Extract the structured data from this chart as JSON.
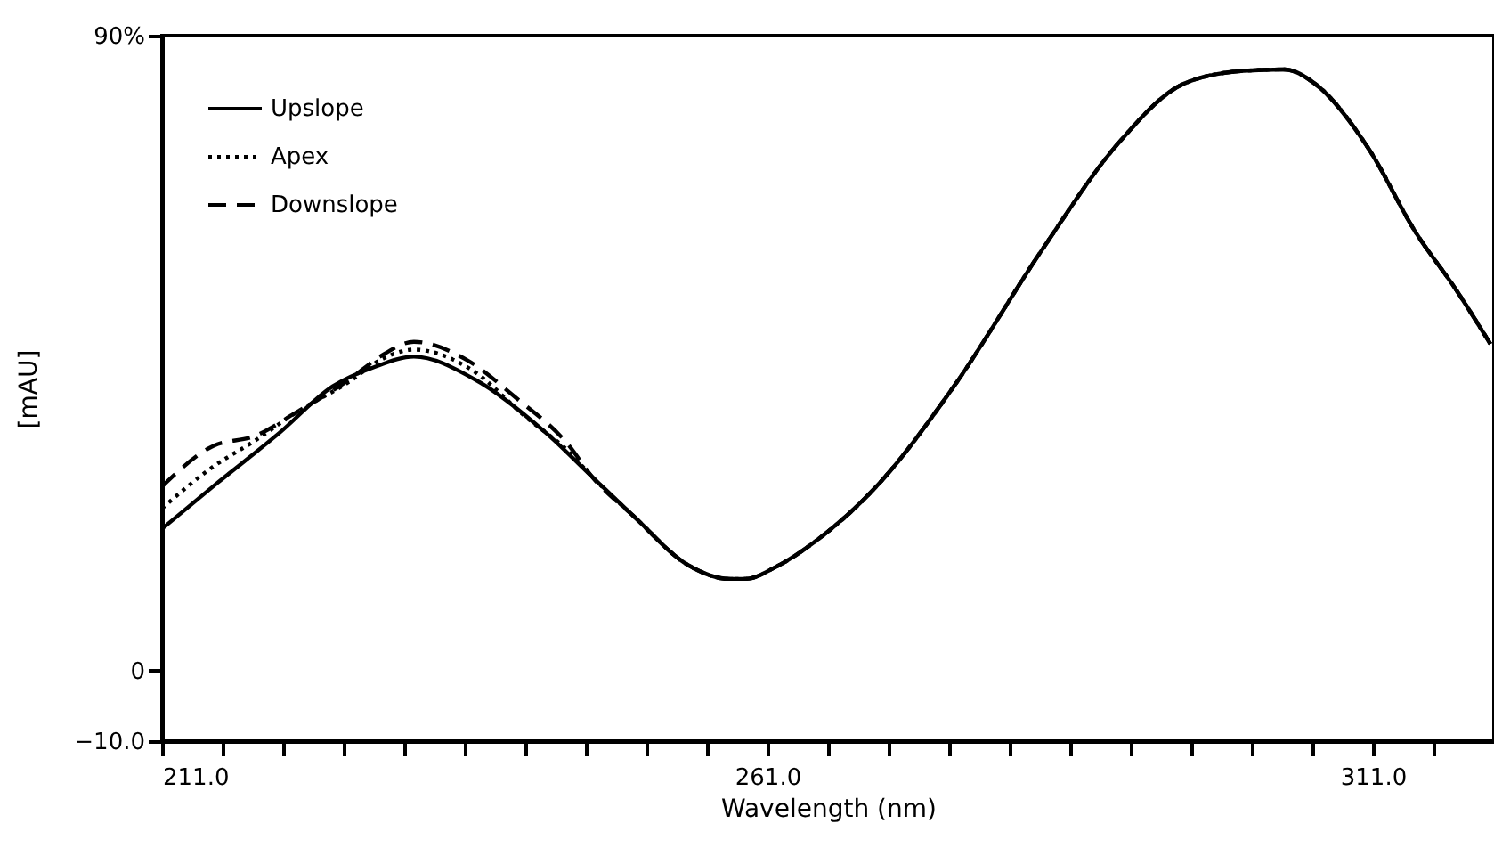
{
  "chart_data": {
    "type": "line",
    "xlabel": "Wavelength   (nm)",
    "ylabel": "[mAU]",
    "xlim": [
      211,
      321
    ],
    "ylim": [
      -10,
      90
    ],
    "xticks": [
      {
        "value": 211,
        "label": "211.0"
      },
      {
        "value": 216,
        "label": null
      },
      {
        "value": 221,
        "label": null
      },
      {
        "value": 226,
        "label": null
      },
      {
        "value": 231,
        "label": null
      },
      {
        "value": 236,
        "label": null
      },
      {
        "value": 241,
        "label": null
      },
      {
        "value": 246,
        "label": null
      },
      {
        "value": 251,
        "label": null
      },
      {
        "value": 256,
        "label": null
      },
      {
        "value": 261,
        "label": "261.0"
      },
      {
        "value": 266,
        "label": null
      },
      {
        "value": 271,
        "label": null
      },
      {
        "value": 276,
        "label": null
      },
      {
        "value": 281,
        "label": null
      },
      {
        "value": 286,
        "label": null
      },
      {
        "value": 291,
        "label": null
      },
      {
        "value": 296,
        "label": null
      },
      {
        "value": 301,
        "label": null
      },
      {
        "value": 306,
        "label": null
      },
      {
        "value": 311,
        "label": "311.0"
      },
      {
        "value": 316,
        "label": null
      }
    ],
    "yticks": [
      {
        "value": -10,
        "label": "−10.0"
      },
      0,
      {
        "value": 90,
        "label": "90%"
      }
    ],
    "legend": "top left",
    "marker": "none",
    "series": [
      {
        "name": "Upslope",
        "color": "#000000",
        "line_style": "solid",
        "x": [
          211,
          215.5,
          220.7,
          225.1,
          228.5,
          231.8,
          236.8,
          242.7,
          246.5,
          250,
          254.4,
          257.8,
          259.2,
          261.7,
          265.1,
          270,
          276.4,
          283.7,
          290,
          295.4,
          300.3,
          303.7,
          306.2,
          310.6,
          314.5,
          317.9,
          320.7
        ],
        "values": [
          20.1,
          26.5,
          33.7,
          40.3,
          43,
          44.5,
          41.3,
          33.7,
          27.5,
          21.8,
          15,
          13,
          13,
          14.7,
          18.5,
          26.1,
          40.3,
          59.7,
          74.8,
          83.2,
          85,
          85.2,
          83.2,
          74.1,
          62.2,
          53.9,
          46.3
        ]
      },
      {
        "name": "Apex",
        "color": "#000000",
        "line_style": "dotted",
        "x": [
          211,
          215.3,
          218.6,
          222,
          226.5,
          229,
          231.8,
          236.5,
          241,
          244.6,
          246.5,
          250,
          254.4,
          257.8,
          259.2,
          261.7,
          265.1,
          270,
          276.4,
          283.7,
          290,
          295.4,
          300.3,
          303.7,
          306.2,
          310.6,
          314.5,
          317.9,
          320.7
        ],
        "values": [
          23,
          29,
          32.5,
          36.5,
          41,
          44,
          45.5,
          42.7,
          36,
          31,
          27.5,
          21.8,
          15,
          13,
          13,
          14.7,
          18.5,
          26.1,
          40.3,
          59.7,
          74.8,
          83.2,
          85,
          85.2,
          83.2,
          74.1,
          62.2,
          53.9,
          46.3
        ]
      },
      {
        "name": "Downslope",
        "color": "#000000",
        "line_style": "dashed",
        "x": [
          211,
          215.3,
          218.6,
          222,
          226.5,
          229,
          231.8,
          236.2,
          240.2,
          244.6,
          246.5,
          250,
          254.4,
          257.8,
          259.2,
          261.7,
          265.1,
          270,
          276.4,
          283.7,
          290,
          295.4,
          300.3,
          303.7,
          306.2,
          310.6,
          314.5,
          317.9,
          320.7
        ],
        "values": [
          26.1,
          31.9,
          33.2,
          36.5,
          41.3,
          44.5,
          46.6,
          44,
          38.7,
          31.9,
          27.5,
          21.8,
          15,
          13,
          13,
          14.7,
          18.5,
          26.1,
          40.3,
          59.7,
          74.8,
          83.2,
          85,
          85.2,
          83.2,
          74.1,
          62.2,
          53.9,
          46.3
        ]
      }
    ]
  }
}
